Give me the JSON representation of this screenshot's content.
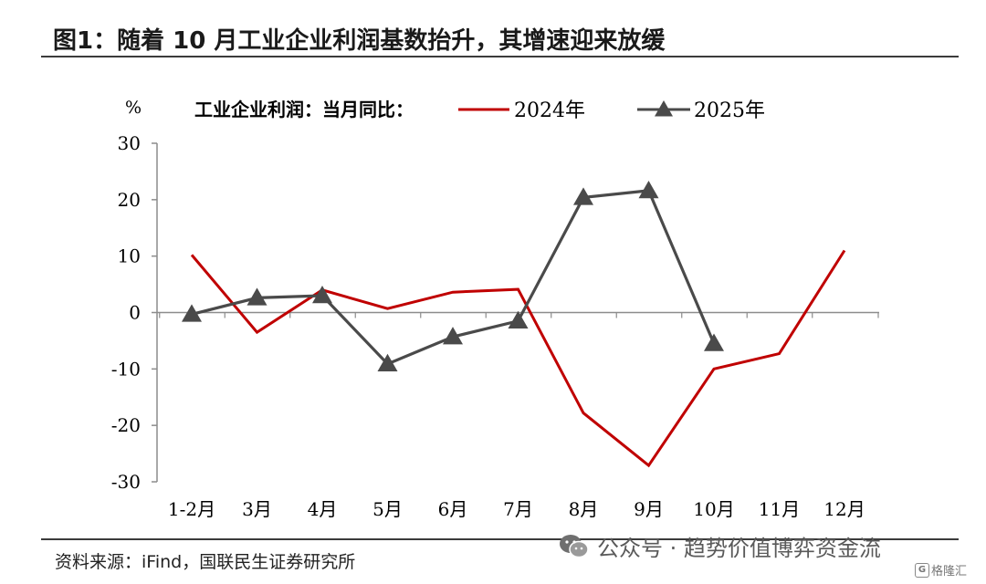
{
  "page": {
    "title": "图1：随着 10 月工业企业利润基数抬升，其增速迎来放缓",
    "source": "资料来源：iFind，国联民生证券研究所",
    "watermark": "公众号 · 趋势价值博弈资金流",
    "watermark_icon": "wechat-icon",
    "corner_logo": "格隆汇",
    "corner_logo_mark": "G"
  },
  "chart_data": {
    "type": "line",
    "title": "",
    "ylabel": "%",
    "xlabel": "",
    "legend_title": "工业企业利润：当月同比：",
    "legend_position": "top",
    "categories": [
      "1-2月",
      "3月",
      "4月",
      "5月",
      "6月",
      "7月",
      "8月",
      "9月",
      "10月",
      "11月",
      "12月"
    ],
    "ylim": [
      -30,
      30
    ],
    "yticks": [
      30,
      20,
      10,
      0,
      -10,
      -20,
      -30
    ],
    "grid": false,
    "series": [
      {
        "name": "2024年",
        "color": "#c00000",
        "marker": "none",
        "values": [
          10.2,
          -3.5,
          4.0,
          0.7,
          3.6,
          4.1,
          -17.8,
          -27.1,
          -10.0,
          -7.3,
          11.0
        ]
      },
      {
        "name": "2025年",
        "color": "#4a4a4a",
        "marker": "triangle",
        "values": [
          -0.3,
          2.6,
          3.0,
          -9.1,
          -4.3,
          -1.5,
          20.4,
          21.6,
          -5.5,
          null,
          null
        ]
      }
    ]
  }
}
